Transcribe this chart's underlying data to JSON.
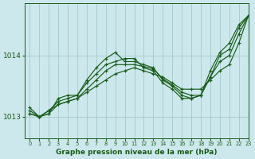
{
  "background_color": "#cce8ec",
  "grid_color": "#aacdd2",
  "line_color": "#1a5c1a",
  "title": "Graphe pression niveau de la mer (hPa)",
  "xlim": [
    -0.5,
    23
  ],
  "ylim": [
    1012.65,
    1014.85
  ],
  "yticks": [
    1013,
    1014
  ],
  "xticks": [
    0,
    1,
    2,
    3,
    4,
    5,
    6,
    7,
    8,
    9,
    10,
    11,
    12,
    13,
    14,
    15,
    16,
    17,
    18,
    19,
    20,
    21,
    22,
    23
  ],
  "series": [
    [
      1013.05,
      1013.0,
      1013.05,
      1013.2,
      1013.25,
      1013.3,
      1013.4,
      1013.5,
      1013.6,
      1013.7,
      1013.75,
      1013.8,
      1013.75,
      1013.7,
      1013.65,
      1013.55,
      1013.45,
      1013.45,
      1013.45,
      1013.6,
      1013.75,
      1013.85,
      1014.2,
      1014.65
    ],
    [
      1013.1,
      1013.0,
      1013.1,
      1013.25,
      1013.3,
      1013.35,
      1013.55,
      1013.7,
      1013.85,
      1013.9,
      1013.95,
      1013.95,
      1013.8,
      1013.75,
      1013.55,
      1013.45,
      1013.3,
      1013.3,
      1013.35,
      1013.65,
      1014.0,
      1014.1,
      1014.45,
      1014.65
    ],
    [
      1013.15,
      1013.0,
      1013.05,
      1013.3,
      1013.35,
      1013.35,
      1013.6,
      1013.8,
      1013.95,
      1014.05,
      1013.9,
      1013.9,
      1013.85,
      1013.8,
      1013.6,
      1013.5,
      1013.35,
      1013.3,
      1013.35,
      1013.75,
      1014.05,
      1014.2,
      1014.5,
      1014.65
    ],
    [
      1013.05,
      1013.0,
      1013.1,
      1013.2,
      1013.25,
      1013.3,
      1013.45,
      1013.6,
      1013.75,
      1013.85,
      1013.85,
      1013.85,
      1013.82,
      1013.78,
      1013.62,
      1013.52,
      1013.4,
      1013.35,
      1013.35,
      1013.65,
      1013.9,
      1014.0,
      1014.35,
      1014.65
    ]
  ]
}
